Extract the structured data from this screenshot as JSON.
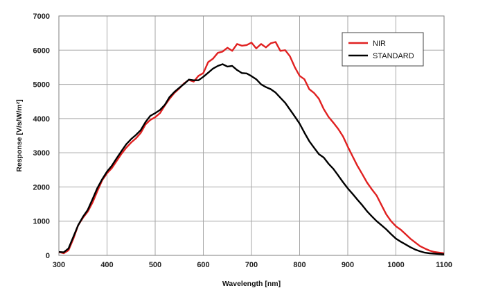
{
  "chart_data": {
    "type": "line",
    "title": "",
    "xlabel": "Wavelength [nm]",
    "ylabel": "Response [V/s/W/m²]",
    "xlim": [
      300,
      1100
    ],
    "ylim": [
      0,
      7000
    ],
    "x_ticks": [
      "300",
      "400",
      "500",
      "600",
      "700",
      "800",
      "900",
      "1000",
      "1100"
    ],
    "y_ticks": [
      "0",
      "1000",
      "2000",
      "3000",
      "4000",
      "5000",
      "6000",
      "7000"
    ],
    "grid": true,
    "legend_position": "top-right",
    "colors": {
      "NIR": "#e02020",
      "STANDARD": "#000000"
    },
    "series": [
      {
        "name": "NIR",
        "color": "#e02020",
        "points": [
          [
            300,
            100
          ],
          [
            310,
            60
          ],
          [
            320,
            150
          ],
          [
            330,
            480
          ],
          [
            340,
            880
          ],
          [
            350,
            1100
          ],
          [
            360,
            1280
          ],
          [
            370,
            1550
          ],
          [
            380,
            1880
          ],
          [
            390,
            2200
          ],
          [
            400,
            2400
          ],
          [
            410,
            2550
          ],
          [
            420,
            2760
          ],
          [
            430,
            2970
          ],
          [
            440,
            3150
          ],
          [
            450,
            3300
          ],
          [
            460,
            3420
          ],
          [
            470,
            3580
          ],
          [
            480,
            3830
          ],
          [
            490,
            3960
          ],
          [
            500,
            4040
          ],
          [
            510,
            4160
          ],
          [
            520,
            4380
          ],
          [
            530,
            4580
          ],
          [
            540,
            4750
          ],
          [
            550,
            4880
          ],
          [
            560,
            5030
          ],
          [
            570,
            5130
          ],
          [
            580,
            5080
          ],
          [
            590,
            5250
          ],
          [
            600,
            5330
          ],
          [
            610,
            5650
          ],
          [
            620,
            5750
          ],
          [
            630,
            5920
          ],
          [
            640,
            5960
          ],
          [
            650,
            6070
          ],
          [
            660,
            5980
          ],
          [
            670,
            6180
          ],
          [
            680,
            6130
          ],
          [
            690,
            6150
          ],
          [
            700,
            6220
          ],
          [
            710,
            6050
          ],
          [
            720,
            6180
          ],
          [
            730,
            6080
          ],
          [
            740,
            6200
          ],
          [
            750,
            6240
          ],
          [
            760,
            5980
          ],
          [
            770,
            6000
          ],
          [
            780,
            5820
          ],
          [
            790,
            5500
          ],
          [
            800,
            5250
          ],
          [
            810,
            5150
          ],
          [
            820,
            4860
          ],
          [
            830,
            4750
          ],
          [
            840,
            4580
          ],
          [
            850,
            4280
          ],
          [
            860,
            4050
          ],
          [
            870,
            3880
          ],
          [
            880,
            3700
          ],
          [
            890,
            3480
          ],
          [
            900,
            3180
          ],
          [
            910,
            2900
          ],
          [
            920,
            2620
          ],
          [
            930,
            2380
          ],
          [
            940,
            2130
          ],
          [
            950,
            1930
          ],
          [
            960,
            1750
          ],
          [
            970,
            1470
          ],
          [
            980,
            1200
          ],
          [
            990,
            1000
          ],
          [
            1000,
            850
          ],
          [
            1010,
            750
          ],
          [
            1020,
            620
          ],
          [
            1030,
            490
          ],
          [
            1040,
            380
          ],
          [
            1050,
            270
          ],
          [
            1060,
            200
          ],
          [
            1070,
            140
          ],
          [
            1080,
            100
          ],
          [
            1090,
            80
          ],
          [
            1100,
            60
          ]
        ]
      },
      {
        "name": "STANDARD",
        "color": "#000000",
        "points": [
          [
            300,
            100
          ],
          [
            310,
            90
          ],
          [
            320,
            200
          ],
          [
            330,
            540
          ],
          [
            340,
            880
          ],
          [
            350,
            1130
          ],
          [
            360,
            1330
          ],
          [
            370,
            1650
          ],
          [
            380,
            1970
          ],
          [
            390,
            2230
          ],
          [
            400,
            2450
          ],
          [
            410,
            2620
          ],
          [
            420,
            2840
          ],
          [
            430,
            3050
          ],
          [
            440,
            3250
          ],
          [
            450,
            3400
          ],
          [
            460,
            3520
          ],
          [
            470,
            3660
          ],
          [
            480,
            3900
          ],
          [
            490,
            4080
          ],
          [
            500,
            4160
          ],
          [
            510,
            4250
          ],
          [
            520,
            4400
          ],
          [
            530,
            4630
          ],
          [
            540,
            4780
          ],
          [
            550,
            4900
          ],
          [
            560,
            5010
          ],
          [
            570,
            5140
          ],
          [
            580,
            5120
          ],
          [
            590,
            5120
          ],
          [
            600,
            5220
          ],
          [
            610,
            5340
          ],
          [
            620,
            5460
          ],
          [
            630,
            5540
          ],
          [
            640,
            5590
          ],
          [
            650,
            5520
          ],
          [
            660,
            5540
          ],
          [
            670,
            5420
          ],
          [
            680,
            5330
          ],
          [
            690,
            5320
          ],
          [
            700,
            5240
          ],
          [
            710,
            5150
          ],
          [
            720,
            5000
          ],
          [
            730,
            4920
          ],
          [
            740,
            4860
          ],
          [
            750,
            4760
          ],
          [
            760,
            4610
          ],
          [
            770,
            4460
          ],
          [
            780,
            4260
          ],
          [
            790,
            4060
          ],
          [
            800,
            3850
          ],
          [
            810,
            3590
          ],
          [
            820,
            3340
          ],
          [
            830,
            3150
          ],
          [
            840,
            2960
          ],
          [
            850,
            2860
          ],
          [
            860,
            2680
          ],
          [
            870,
            2530
          ],
          [
            880,
            2340
          ],
          [
            890,
            2140
          ],
          [
            900,
            1960
          ],
          [
            910,
            1800
          ],
          [
            920,
            1630
          ],
          [
            930,
            1470
          ],
          [
            940,
            1290
          ],
          [
            950,
            1140
          ],
          [
            960,
            1000
          ],
          [
            970,
            880
          ],
          [
            980,
            760
          ],
          [
            990,
            620
          ],
          [
            1000,
            490
          ],
          [
            1010,
            400
          ],
          [
            1020,
            320
          ],
          [
            1030,
            240
          ],
          [
            1040,
            170
          ],
          [
            1050,
            120
          ],
          [
            1060,
            80
          ],
          [
            1070,
            60
          ],
          [
            1080,
            50
          ],
          [
            1090,
            40
          ],
          [
            1100,
            30
          ]
        ]
      }
    ]
  }
}
